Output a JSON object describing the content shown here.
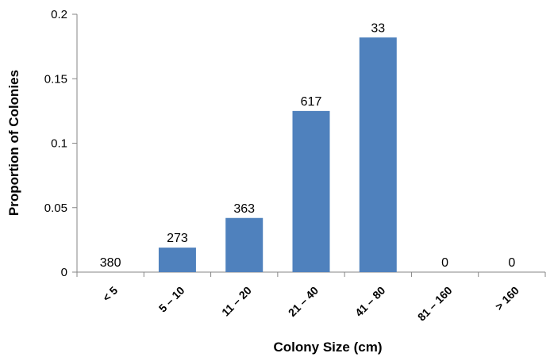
{
  "chart_data": {
    "type": "bar",
    "title": "",
    "xlabel": "Colony Size (cm)",
    "ylabel": "Proportion of Colonies",
    "categories": [
      "< 5",
      "5 – 10",
      "11 – 20",
      "21 – 40",
      "41 – 80",
      "81 – 160",
      "> 160"
    ],
    "values": [
      0,
      0.019,
      0.042,
      0.125,
      0.182,
      0,
      0
    ],
    "data_labels": [
      "380",
      "273",
      "363",
      "617",
      "33",
      "0",
      "0"
    ],
    "ylim": [
      0,
      0.2
    ],
    "yticks": [
      "0",
      "0.05",
      "0.1",
      "0.15",
      "0.2"
    ],
    "grid": false,
    "legend": "none",
    "bar_color": "#4F81BD",
    "axis_color": "#868686"
  }
}
